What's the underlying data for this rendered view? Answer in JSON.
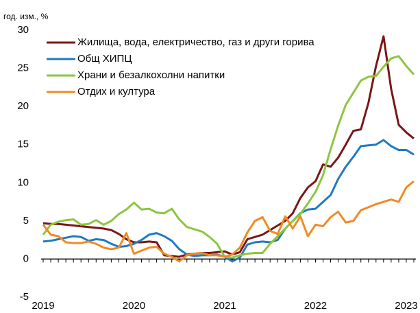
{
  "chart_data": {
    "type": "line",
    "ylabel": "год. изм., %",
    "categories": [
      "2019",
      null,
      null,
      null,
      null,
      null,
      null,
      null,
      null,
      null,
      null,
      null,
      "2020",
      null,
      null,
      null,
      null,
      null,
      null,
      null,
      null,
      null,
      null,
      null,
      "2021",
      null,
      null,
      null,
      null,
      null,
      null,
      null,
      null,
      null,
      null,
      null,
      "2022",
      null,
      null,
      null,
      null,
      null,
      null,
      null,
      null,
      null,
      null,
      null,
      "2023",
      null
    ],
    "series": [
      {
        "name": "Жилища, вода, електричество, газ и други горива",
        "color": "#7a1616",
        "values": [
          4.7,
          4.6,
          4.6,
          4.5,
          4.4,
          4.3,
          4.2,
          4.1,
          4.0,
          3.8,
          3.3,
          2.6,
          2.2,
          2.2,
          2.3,
          2.2,
          0.5,
          0.4,
          0.3,
          0.6,
          0.7,
          0.8,
          0.8,
          0.9,
          1.0,
          0.6,
          0.9,
          2.6,
          2.9,
          3.2,
          3.8,
          4.4,
          5.0,
          6.0,
          8.0,
          9.4,
          10.2,
          12.4,
          12.1,
          13.3,
          15.0,
          16.8,
          17.0,
          20.5,
          25.3,
          29.2,
          22.3,
          17.6,
          16.6,
          15.8
        ]
      },
      {
        "name": "Общ ХИПЦ",
        "color": "#1f7ac3",
        "values": [
          2.3,
          2.4,
          2.6,
          2.8,
          3.0,
          2.9,
          2.4,
          2.6,
          2.5,
          2.0,
          1.6,
          1.7,
          2.0,
          2.5,
          3.2,
          3.4,
          3.0,
          2.4,
          1.3,
          0.6,
          0.4,
          0.5,
          0.5,
          0.6,
          0.3,
          -0.3,
          0.2,
          1.9,
          2.2,
          2.3,
          2.2,
          2.5,
          4.0,
          5.0,
          6.0,
          6.5,
          6.6,
          7.5,
          8.4,
          10.5,
          12.1,
          13.4,
          14.8,
          14.9,
          15.0,
          15.6,
          14.8,
          14.3,
          14.3,
          13.7
        ]
      },
      {
        "name": "Храни и безалкохолни напитки",
        "color": "#8dc63f",
        "values": [
          3.2,
          4.5,
          4.9,
          5.1,
          5.2,
          4.5,
          4.6,
          5.1,
          4.5,
          5.0,
          5.9,
          6.5,
          7.4,
          6.5,
          6.6,
          6.1,
          6.0,
          6.6,
          5.2,
          4.2,
          3.9,
          3.6,
          2.9,
          2.0,
          0.3,
          0.2,
          0.5,
          0.7,
          0.8,
          0.8,
          2.0,
          3.0,
          4.0,
          5.0,
          5.9,
          7.3,
          8.8,
          11.0,
          14.4,
          17.5,
          20.2,
          21.8,
          23.4,
          23.9,
          24.0,
          25.2,
          26.3,
          26.6,
          25.3,
          24.2
        ]
      },
      {
        "name": "Отдих и култура",
        "color": "#f08a24",
        "values": [
          4.5,
          3.2,
          3.0,
          2.2,
          2.1,
          2.1,
          2.3,
          2.0,
          1.5,
          1.3,
          1.5,
          3.4,
          0.7,
          1.1,
          1.5,
          1.6,
          0.7,
          0.3,
          -0.3,
          0.5,
          0.7,
          0.8,
          0.5,
          0.5,
          0.3,
          0.6,
          1.5,
          3.5,
          5.0,
          5.5,
          3.7,
          3.3,
          5.6,
          4.0,
          5.6,
          3.0,
          4.5,
          4.3,
          5.5,
          6.2,
          4.8,
          5.0,
          6.4,
          6.8,
          7.2,
          7.5,
          7.8,
          7.5,
          9.4,
          10.2
        ]
      }
    ],
    "ylim": [
      -5,
      30
    ],
    "yticks": [
      -5,
      0,
      5,
      10,
      15,
      20,
      25,
      30
    ],
    "legend": "top-left",
    "grid": false
  }
}
